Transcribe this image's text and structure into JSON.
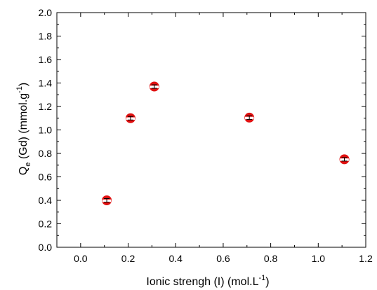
{
  "chart_data": {
    "type": "scatter",
    "title": "",
    "xlabel": {
      "main": "Ionic strengh (I) (mol.L",
      "sup": "-1",
      "close": ")"
    },
    "ylabel": {
      "main": "Q",
      "sub": "e",
      "mid": " (Gd) (mmol.g",
      "sup": "-1",
      "close": ")"
    },
    "xlim": [
      -0.1,
      1.2
    ],
    "ylim": [
      0.0,
      2.0
    ],
    "xticks": [
      0.0,
      0.2,
      0.4,
      0.6,
      0.8,
      1.0,
      1.2
    ],
    "xtick_labels": [
      "0.0",
      "0.2",
      "0.4",
      "0.6",
      "0.8",
      "1.0",
      "1.2"
    ],
    "yticks": [
      0.0,
      0.2,
      0.4,
      0.6,
      0.8,
      1.0,
      1.2,
      1.4,
      1.6,
      1.8,
      2.0
    ],
    "ytick_labels": [
      "0.0",
      "0.2",
      "0.4",
      "0.6",
      "0.8",
      "1.0",
      "1.2",
      "1.4",
      "1.6",
      "1.8",
      "2.0"
    ],
    "grid": false,
    "legend": "none",
    "marker_color": "#e01010",
    "series": [
      {
        "x": [
          0.11,
          0.21,
          0.31,
          0.71,
          1.11
        ],
        "y": [
          0.4,
          1.1,
          1.37,
          1.105,
          0.75
        ],
        "err": [
          0.015,
          0.015,
          0.015,
          0.015,
          0.015
        ]
      }
    ]
  }
}
